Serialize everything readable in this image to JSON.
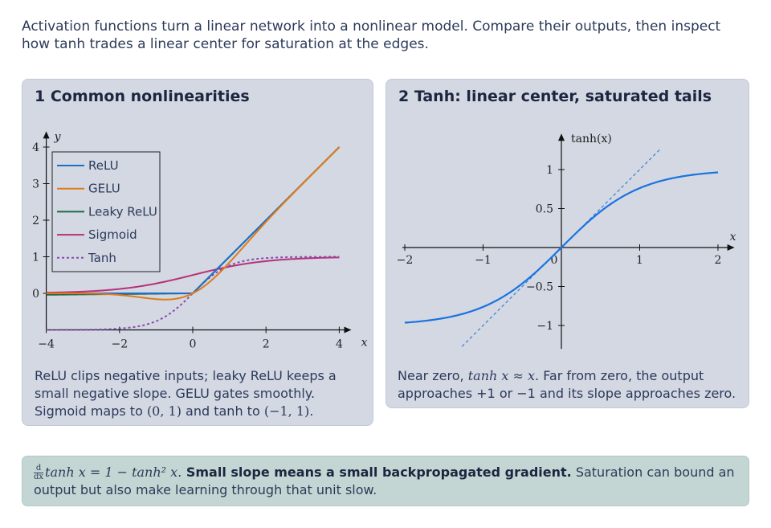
{
  "intro": "Activation functions turn a linear network into a nonlinear model. Compare their outputs, then inspect how tanh trades a linear center for saturation at the edges.",
  "panel1": {
    "title": "1 Common nonlinearities",
    "caption_a": "ReLU clips negative inputs; leaky ReLU keeps a small negative slope. GELU gates smoothly. Sigmoid maps to ",
    "caption_m1": "(0, 1)",
    "caption_b": " and tanh to ",
    "caption_m2": "(−1, 1)",
    "caption_c": "."
  },
  "panel2": {
    "title": "2 Tanh: linear center, saturated tails",
    "caption_a": "Near zero, ",
    "caption_m1": "tanh x ≈ x",
    "caption_b": ". Far from zero, the output approaches +1 or −1 and its slope approaches zero."
  },
  "footer": {
    "frac_num": "d",
    "frac_den": "dx",
    "formula": "tanh x = 1 − tanh² x.",
    "bold": " Small slope means a small backpropagated gradient.",
    "rest": " Saturation can bound an output but also make learning through that unit slow."
  },
  "chart_data": [
    {
      "type": "line",
      "title": "1 Common nonlinearities",
      "xlabel": "x",
      "ylabel": "y",
      "xlim": [
        -4,
        4
      ],
      "ylim": [
        -1,
        4
      ],
      "x_ticks": [
        "−4",
        "−2",
        "0",
        "2",
        "4"
      ],
      "y_ticks": [
        "0",
        "1",
        "2",
        "3",
        "4"
      ],
      "legend_position": "top-left",
      "series": [
        {
          "name": "ReLU",
          "color": "#1f6fc5",
          "style": "solid",
          "function": "max(0, x)"
        },
        {
          "name": "GELU",
          "color": "#e07b1a",
          "style": "solid",
          "function": "x·Φ(x)"
        },
        {
          "name": "Leaky ReLU",
          "color": "#1e6b46",
          "style": "solid",
          "function": "max(0.01x, x)"
        },
        {
          "name": "Sigmoid",
          "color": "#b7317a",
          "style": "solid",
          "function": "1/(1+e^-x)"
        },
        {
          "name": "Tanh",
          "color": "#8b4bb0",
          "style": "dotted",
          "function": "tanh(x)"
        }
      ]
    },
    {
      "type": "line",
      "title": "2 Tanh: linear center, saturated tails",
      "xlabel": "x",
      "ylabel": "tanh(x)",
      "xlim": [
        -2,
        2
      ],
      "ylim": [
        -1.2,
        1.2
      ],
      "x_ticks": [
        "−2",
        "−1",
        "0",
        "1",
        "2"
      ],
      "y_ticks": [
        "−1",
        "−0.5",
        "0.5",
        "1"
      ],
      "series": [
        {
          "name": "tanh(x)",
          "color": "#1a73e0",
          "style": "solid",
          "function": "tanh(x)"
        },
        {
          "name": "y = x",
          "color": "#3b7fd6",
          "style": "dashed",
          "function": "x"
        }
      ]
    }
  ]
}
